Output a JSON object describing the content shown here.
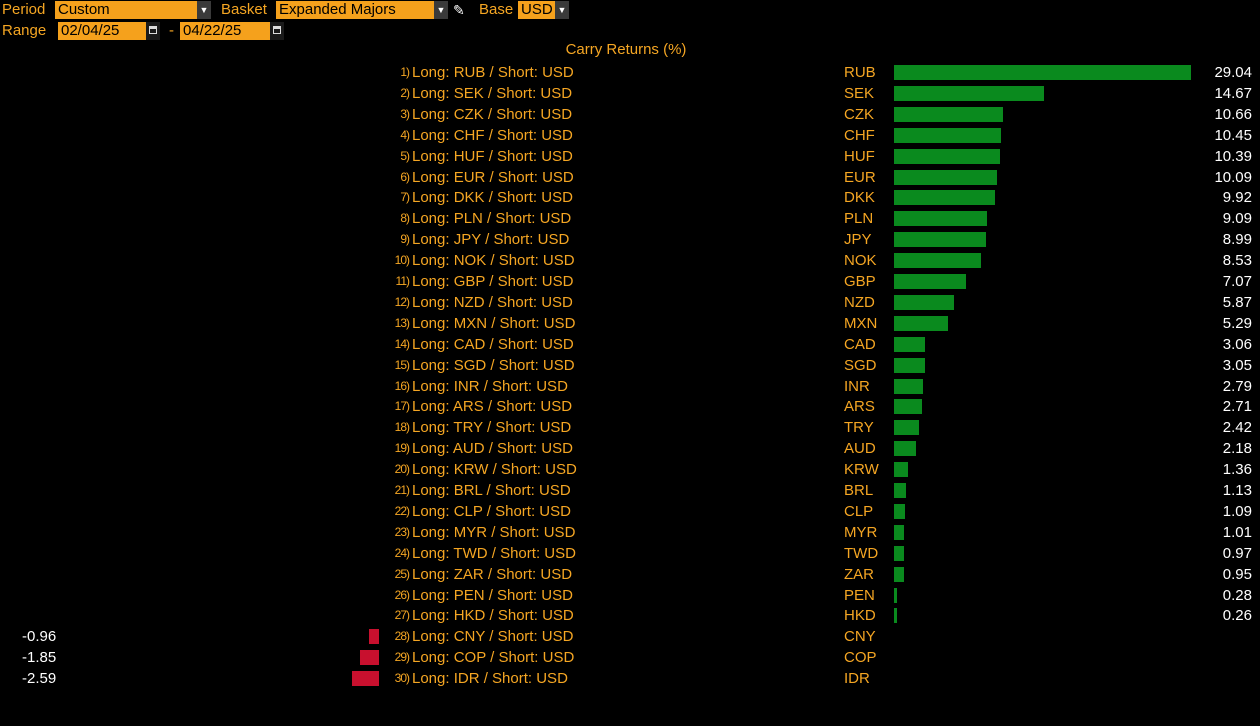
{
  "controls": {
    "period_label": "Period",
    "period_value": "Custom",
    "basket_label": "Basket",
    "basket_value": "Expanded Majors",
    "base_label": "Base",
    "base_value": "USD",
    "range_label": "Range",
    "range_start": "02/04/25",
    "range_sep": "-",
    "range_end": "04/22/25"
  },
  "colors": {
    "positive": "#0a8a1e",
    "negative": "#c8102e",
    "text": "#f5a623",
    "field": "#f5a11c"
  },
  "icons": [
    "dropdown-arrow-icon",
    "pencil-icon",
    "calendar-icon"
  ],
  "chart_data": {
    "type": "bar",
    "title": "Carry Returns (%)",
    "rows": [
      {
        "rank": "1)",
        "label": "Long: RUB / Short: USD",
        "ccy": "RUB",
        "value": 29.04,
        "display": "29.04"
      },
      {
        "rank": "2)",
        "label": "Long: SEK / Short: USD",
        "ccy": "SEK",
        "value": 14.67,
        "display": "14.67"
      },
      {
        "rank": "3)",
        "label": "Long: CZK / Short: USD",
        "ccy": "CZK",
        "value": 10.66,
        "display": "10.66"
      },
      {
        "rank": "4)",
        "label": "Long: CHF / Short: USD",
        "ccy": "CHF",
        "value": 10.45,
        "display": "10.45"
      },
      {
        "rank": "5)",
        "label": "Long: HUF / Short: USD",
        "ccy": "HUF",
        "value": 10.39,
        "display": "10.39"
      },
      {
        "rank": "6)",
        "label": "Long: EUR / Short: USD",
        "ccy": "EUR",
        "value": 10.09,
        "display": "10.09"
      },
      {
        "rank": "7)",
        "label": "Long: DKK / Short: USD",
        "ccy": "DKK",
        "value": 9.92,
        "display": "9.92"
      },
      {
        "rank": "8)",
        "label": "Long: PLN / Short: USD",
        "ccy": "PLN",
        "value": 9.09,
        "display": "9.09"
      },
      {
        "rank": "9)",
        "label": "Long: JPY / Short: USD",
        "ccy": "JPY",
        "value": 8.99,
        "display": "8.99"
      },
      {
        "rank": "10)",
        "label": "Long: NOK / Short: USD",
        "ccy": "NOK",
        "value": 8.53,
        "display": "8.53"
      },
      {
        "rank": "11)",
        "label": "Long: GBP / Short: USD",
        "ccy": "GBP",
        "value": 7.07,
        "display": "7.07"
      },
      {
        "rank": "12)",
        "label": "Long: NZD / Short: USD",
        "ccy": "NZD",
        "value": 5.87,
        "display": "5.87"
      },
      {
        "rank": "13)",
        "label": "Long: MXN / Short: USD",
        "ccy": "MXN",
        "value": 5.29,
        "display": "5.29"
      },
      {
        "rank": "14)",
        "label": "Long: CAD / Short: USD",
        "ccy": "CAD",
        "value": 3.06,
        "display": "3.06"
      },
      {
        "rank": "15)",
        "label": "Long: SGD / Short: USD",
        "ccy": "SGD",
        "value": 3.05,
        "display": "3.05"
      },
      {
        "rank": "16)",
        "label": "Long: INR / Short: USD",
        "ccy": "INR",
        "value": 2.79,
        "display": "2.79"
      },
      {
        "rank": "17)",
        "label": "Long: ARS / Short: USD",
        "ccy": "ARS",
        "value": 2.71,
        "display": "2.71"
      },
      {
        "rank": "18)",
        "label": "Long: TRY / Short: USD",
        "ccy": "TRY",
        "value": 2.42,
        "display": "2.42"
      },
      {
        "rank": "19)",
        "label": "Long: AUD / Short: USD",
        "ccy": "AUD",
        "value": 2.18,
        "display": "2.18"
      },
      {
        "rank": "20)",
        "label": "Long: KRW / Short: USD",
        "ccy": "KRW",
        "value": 1.36,
        "display": "1.36"
      },
      {
        "rank": "21)",
        "label": "Long: BRL / Short: USD",
        "ccy": "BRL",
        "value": 1.13,
        "display": "1.13"
      },
      {
        "rank": "22)",
        "label": "Long: CLP / Short: USD",
        "ccy": "CLP",
        "value": 1.09,
        "display": "1.09"
      },
      {
        "rank": "23)",
        "label": "Long: MYR / Short: USD",
        "ccy": "MYR",
        "value": 1.01,
        "display": "1.01"
      },
      {
        "rank": "24)",
        "label": "Long: TWD / Short: USD",
        "ccy": "TWD",
        "value": 0.97,
        "display": "0.97"
      },
      {
        "rank": "25)",
        "label": "Long: ZAR / Short: USD",
        "ccy": "ZAR",
        "value": 0.95,
        "display": "0.95"
      },
      {
        "rank": "26)",
        "label": "Long: PEN / Short: USD",
        "ccy": "PEN",
        "value": 0.28,
        "display": "0.28"
      },
      {
        "rank": "27)",
        "label": "Long: HKD / Short: USD",
        "ccy": "HKD",
        "value": 0.26,
        "display": "0.26"
      },
      {
        "rank": "28)",
        "label": "Long: CNY / Short: USD",
        "ccy": "CNY",
        "value": -0.96,
        "display": "-0.96"
      },
      {
        "rank": "29)",
        "label": "Long: COP / Short: USD",
        "ccy": "COP",
        "value": -1.85,
        "display": "-1.85"
      },
      {
        "rank": "30)",
        "label": "Long: IDR / Short: USD",
        "ccy": "IDR",
        "value": -2.59,
        "display": "-2.59"
      }
    ]
  }
}
